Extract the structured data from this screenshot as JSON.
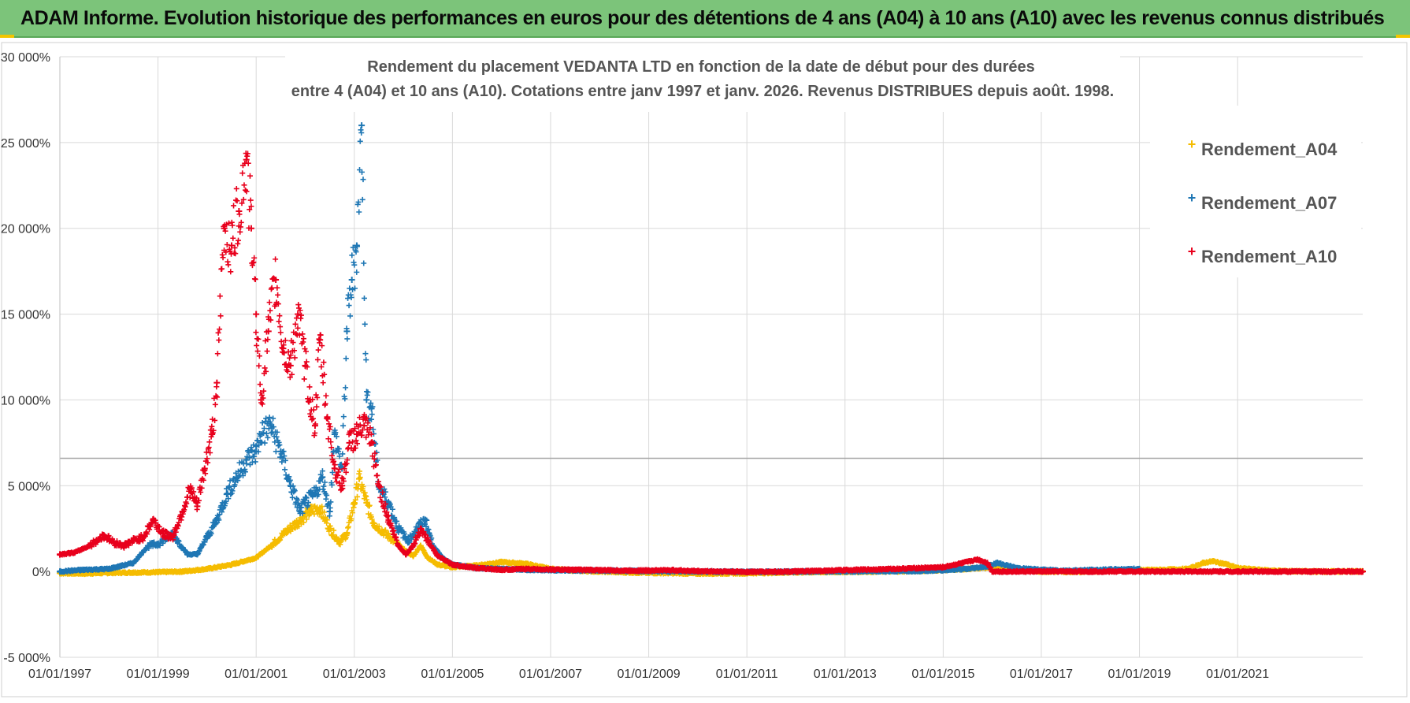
{
  "header": {
    "banner_title": "ADAM Informe. Evolution historique des performances en euros pour des détentions de 4 ans (A04) à 10 ans (A10) avec les revenus connus distribués"
  },
  "colors": {
    "banner_bg": "#7cc47a",
    "series_A04": "#f5bc00",
    "series_A07": "#1f77b4",
    "series_A10": "#e8001c",
    "grid": "#d9d9d9",
    "reference_line": "#a6a6a6"
  },
  "chart_data": {
    "type": "scatter",
    "title_line1": "Rendement du placement VEDANTA LTD en fonction de la date de début pour des durées",
    "title_line2": "entre 4 (A04) et 10 ans (A10).  Cotations entre janv 1997 et janv. 2026. Revenus DISTRIBUES depuis août. 1998.",
    "xlabel": "",
    "ylabel": "",
    "x_range": [
      1997.0,
      2023.55
    ],
    "ylim": [
      -5000,
      30000
    ],
    "y_ticks": [
      -5000,
      0,
      5000,
      10000,
      15000,
      20000,
      25000,
      30000
    ],
    "y_tick_labels": [
      "-5 000%",
      "0%",
      "5 000%",
      "10 000%",
      "15 000%",
      "20 000%",
      "25 000%",
      "30 000%"
    ],
    "x_ticks": [
      1997,
      1999,
      2001,
      2003,
      2005,
      2007,
      2009,
      2011,
      2013,
      2015,
      2017,
      2019,
      2021
    ],
    "x_tick_labels": [
      "01/01/1997",
      "01/01/1999",
      "01/01/2001",
      "01/01/2003",
      "01/01/2005",
      "01/01/2007",
      "01/01/2009",
      "01/01/2011",
      "01/01/2013",
      "01/01/2015",
      "01/01/2017",
      "01/01/2019",
      "01/01/2021"
    ],
    "reference_line_y": 6600,
    "grid": true,
    "legend_position": "right",
    "marker": "+",
    "series": [
      {
        "name": "Rendement_A04",
        "x": [
          1997.0,
          1997.5,
          1998.0,
          1998.5,
          1999.0,
          1999.5,
          2000.0,
          2000.5,
          2001.0,
          2001.3,
          2001.6,
          2001.9,
          2002.1,
          2002.3,
          2002.5,
          2002.7,
          2002.85,
          2003.0,
          2003.1,
          2003.25,
          2003.4,
          2003.6,
          2003.8,
          2004.0,
          2004.2,
          2004.35,
          2004.5,
          2004.7,
          2005.0,
          2005.5,
          2006.0,
          2006.5,
          2007.0,
          2007.5,
          2008.0,
          2008.5,
          2009.0,
          2009.5,
          2010.0,
          2011.0,
          2012.0,
          2013.0,
          2014.0,
          2014.5,
          2015.0,
          2015.5,
          2016.0,
          2016.5,
          2017.0,
          2017.5,
          2018.0,
          2018.5,
          2019.0,
          2019.5,
          2020.0,
          2020.3,
          2020.5,
          2020.8,
          2021.0,
          2021.5,
          2022.0,
          2022.5,
          2023.0,
          2023.55
        ],
        "y": [
          -100,
          -120,
          -80,
          -60,
          -40,
          0,
          150,
          400,
          800,
          1500,
          2300,
          3000,
          3500,
          3700,
          2500,
          1700,
          2200,
          4000,
          5400,
          4000,
          2800,
          2300,
          1800,
          1300,
          900,
          1500,
          800,
          400,
          250,
          350,
          550,
          450,
          150,
          50,
          0,
          -50,
          -80,
          -100,
          -120,
          -100,
          -50,
          -20,
          10,
          30,
          80,
          150,
          250,
          100,
          0,
          -20,
          0,
          60,
          80,
          100,
          150,
          500,
          600,
          400,
          200,
          80,
          20,
          0,
          0,
          0
        ]
      },
      {
        "name": "Rendement_A07",
        "x": [
          1997.0,
          1997.5,
          1998.0,
          1998.5,
          1998.8,
          1999.0,
          1999.3,
          1999.6,
          1999.8,
          2000.0,
          2000.2,
          2000.4,
          2000.6,
          2000.8,
          2001.0,
          2001.1,
          2001.3,
          2001.5,
          2001.7,
          2001.9,
          2002.0,
          2002.2,
          2002.35,
          2002.5,
          2002.6,
          2002.75,
          2002.85,
          2002.95,
          2003.05,
          2003.15,
          2003.25,
          2003.35,
          2003.5,
          2003.7,
          2003.9,
          2004.1,
          2004.3,
          2004.45,
          2004.6,
          2004.8,
          2005.0,
          2005.5,
          2006.0,
          2006.5,
          2007.0,
          2008.0,
          2009.0,
          2010.0,
          2011.0,
          2012.0,
          2013.0,
          2014.0,
          2014.5,
          2015.0,
          2015.5,
          2015.9,
          2016.1,
          2016.5,
          2017.0,
          2017.5,
          2018.0,
          2018.5,
          2019.0
        ],
        "y": [
          0,
          100,
          150,
          500,
          1500,
          1600,
          2200,
          1000,
          1000,
          2000,
          3000,
          4500,
          5500,
          6500,
          7000,
          8000,
          8500,
          7000,
          5000,
          3500,
          4000,
          4500,
          5500,
          3500,
          8000,
          6000,
          14000,
          17000,
          19000,
          26000,
          10000,
          9500,
          5000,
          4000,
          2500,
          1800,
          2600,
          3000,
          1500,
          800,
          400,
          200,
          150,
          100,
          80,
          50,
          20,
          0,
          -20,
          -10,
          0,
          20,
          40,
          80,
          150,
          300,
          500,
          200,
          100,
          50,
          80,
          120,
          150
        ]
      },
      {
        "name": "Rendement_A10",
        "x": [
          1997.0,
          1997.3,
          1997.6,
          1997.9,
          1998.1,
          1998.3,
          1998.5,
          1998.7,
          1998.9,
          1999.1,
          1999.3,
          1999.5,
          1999.65,
          1999.8,
          1999.95,
          2000.1,
          2000.2,
          2000.35,
          2000.5,
          2000.65,
          2000.8,
          2000.9,
          2001.0,
          2001.1,
          2001.25,
          2001.4,
          2001.55,
          2001.7,
          2001.85,
          2002.0,
          2002.1,
          2002.2,
          2002.3,
          2002.45,
          2002.6,
          2002.75,
          2002.9,
          2003.05,
          2003.2,
          2003.35,
          2003.5,
          2003.7,
          2003.9,
          2004.05,
          2004.2,
          2004.35,
          2004.5,
          2004.7,
          2005.0,
          2005.5,
          2006.0,
          2006.5,
          2007.0,
          2007.5,
          2008.0,
          2008.5,
          2009.0,
          2009.5,
          2010.0,
          2011.0,
          2012.0,
          2013.0,
          2014.0,
          2014.5,
          2015.0,
          2015.4,
          2015.7,
          2015.9,
          2016.0,
          2016.5,
          2017.0,
          2018.0,
          2019.0,
          2020.0,
          2021.0,
          2022.0,
          2023.0,
          2023.55
        ],
        "y": [
          1000,
          1100,
          1500,
          2100,
          1700,
          1500,
          1800,
          2000,
          3000,
          2200,
          2000,
          3500,
          4800,
          3800,
          6000,
          8000,
          11000,
          20000,
          19000,
          21000,
          24000,
          20000,
          15000,
          10000,
          14000,
          17000,
          13000,
          12000,
          15000,
          12000,
          10000,
          8500,
          13500,
          9000,
          6000,
          5000,
          7500,
          8000,
          8500,
          7500,
          5000,
          3000,
          1500,
          1000,
          1500,
          2500,
          1800,
          900,
          400,
          200,
          100,
          150,
          120,
          100,
          80,
          50,
          60,
          80,
          20,
          -20,
          0,
          80,
          150,
          200,
          250,
          500,
          700,
          500,
          0,
          0,
          0,
          0,
          0,
          0,
          0,
          0,
          0,
          0
        ]
      }
    ]
  }
}
